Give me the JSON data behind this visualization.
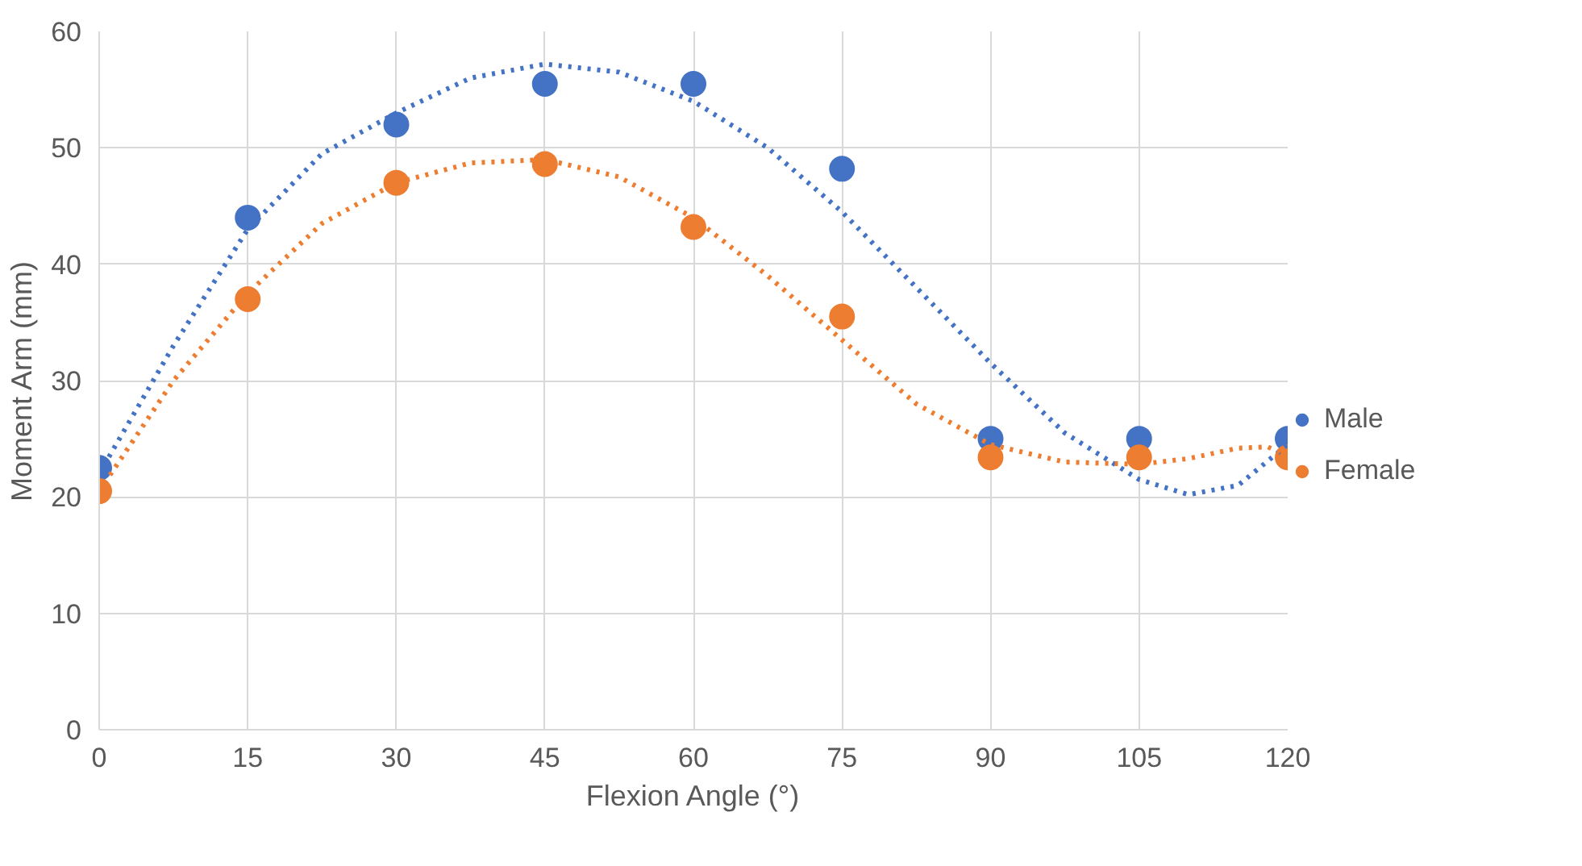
{
  "chart_data": {
    "type": "scatter",
    "xlabel": "Flexion Angle (°)",
    "ylabel": "Moment Arm (mm)",
    "x": [
      0,
      15,
      30,
      45,
      60,
      75,
      90,
      105,
      120
    ],
    "xlim": [
      0,
      120
    ],
    "xticks": [
      0,
      15,
      30,
      45,
      60,
      75,
      90,
      105,
      120
    ],
    "ylim": [
      0,
      60
    ],
    "yticks": [
      0,
      10,
      20,
      30,
      40,
      50,
      60
    ],
    "grid": true,
    "legend": "right",
    "marker": "circle",
    "series": [
      {
        "name": "Male",
        "color": "#4472c4",
        "values": [
          22.5,
          44,
          52,
          55.5,
          55.5,
          48.2,
          25,
          25,
          25
        ]
      },
      {
        "name": "Female",
        "color": "#ed7d31",
        "values": [
          20.5,
          37,
          47,
          48.6,
          43.2,
          35.5,
          23.4,
          23.4,
          23.4
        ]
      },
      {
        "type": "line",
        "line_style": "dotted",
        "marker": "none",
        "color": "#4472c4",
        "x": [
          0,
          7.5,
          15,
          22.5,
          30,
          37.5,
          45,
          52.5,
          60,
          67.5,
          75,
          82.5,
          90,
          97.5,
          105,
          110,
          115,
          120
        ],
        "values": [
          22,
          33,
          43,
          49.5,
          53,
          56,
          57.2,
          56.5,
          54,
          50,
          44.5,
          38,
          31.5,
          25.5,
          21.5,
          20.2,
          21,
          24.5
        ]
      },
      {
        "type": "line",
        "line_style": "dotted",
        "marker": "none",
        "color": "#ed7d31",
        "x": [
          0,
          7.5,
          15,
          22.5,
          30,
          37.5,
          45,
          52.5,
          60,
          67.5,
          75,
          82.5,
          90,
          97.5,
          105,
          110,
          115,
          118,
          120
        ],
        "values": [
          20.5,
          30,
          37.5,
          43.5,
          47,
          48.7,
          49,
          47.5,
          44,
          39,
          33.5,
          28,
          24.5,
          23,
          22.8,
          23.3,
          24.2,
          24.3,
          23.5
        ]
      }
    ]
  }
}
